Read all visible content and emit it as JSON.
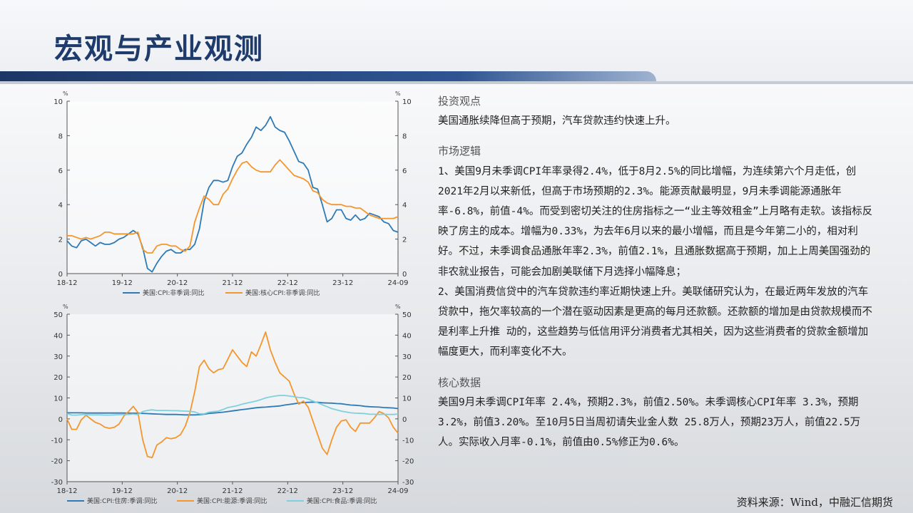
{
  "page": {
    "title": "宏观与产业观测",
    "source": "资料来源：Wind，中融汇信期货"
  },
  "sections": {
    "view_heading": "投资观点",
    "view_text": "美国通胀续降但高于预期，汽车贷款违约快速上升。",
    "logic_heading": "市场逻辑",
    "logic_p1": "1、美国9月未季调CPI年率录得2.4%，低于8月2.5%的同比增幅，为连续第六个月走低，创2021年2月以来新低，但高于市场预期的2.3%。能源贡献最明显，9月未季调能源通胀年率-6.8%，前值-4%。而受到密切关注的住房指标之一“业主等效租金”上月略有走软。该指标反映了房主的成本。增幅为0.33%，为去年6月以来的最小增幅，而且是今年第二小的，相对利好。不过，未季调食品通胀年率2.3%，前值2.1%，且通胀数据高于预期，加上上周美国强劲的非农就业报告，可能会加剧美联储下月选择小幅降息；",
    "logic_p2": "2、美国消费信贷中的汽车贷款违约率近期快速上升。美联储研究认为，在最近两年发放的汽车贷款中，拖欠率较高的一个潜在驱动因素是更高的每月还款额。还款额的增加是由贷款规模而不是利率上升推  动的，这些趋势与低信用评分消费者尤其相关，因为这些消费者的贷款金额增加幅度更大，而利率变化不大。",
    "core_heading": "核心数据",
    "core_text": "美国9月未季调CPI年率 2.4%，预期2.3%，前值2.50%。未季调核心CPI年率 3.3%，预期3.2%，前值3.20%。至10月5日当周初请失业金人数 25.8万人，预期23万人，前值22.5万人。实际收入月率-0.1%，前值由0.5%修正为0.6%。"
  },
  "chart_data": [
    {
      "type": "line",
      "unit": "%",
      "x_ticks": [
        "18-12",
        "19-12",
        "20-12",
        "21-12",
        "22-12",
        "23-12",
        "24-09"
      ],
      "ylim": [
        0,
        10
      ],
      "y_ticks": [
        0,
        2,
        4,
        6,
        8,
        10
      ],
      "legend_position": "bottom",
      "series": [
        {
          "name": "美国:CPI:非季调:同比",
          "color": "#2e7ab6",
          "values": [
            1.9,
            1.6,
            1.5,
            1.9,
            2.0,
            1.8,
            1.6,
            1.8,
            1.7,
            1.7,
            1.8,
            2.0,
            2.1,
            2.3,
            2.5,
            2.3,
            1.5,
            0.3,
            0.1,
            0.6,
            1.0,
            1.3,
            1.4,
            1.2,
            1.2,
            1.4,
            1.4,
            1.7,
            2.6,
            4.2,
            5.0,
            5.4,
            5.4,
            5.3,
            5.4,
            6.2,
            6.8,
            7.0,
            7.5,
            7.9,
            8.5,
            8.3,
            8.6,
            9.1,
            8.5,
            8.3,
            8.2,
            7.7,
            7.1,
            6.5,
            6.4,
            6.0,
            5.0,
            4.9,
            4.0,
            3.0,
            3.2,
            3.7,
            3.7,
            3.2,
            3.1,
            3.4,
            3.1,
            3.2,
            3.5,
            3.4,
            3.3,
            3.0,
            2.9,
            2.5,
            2.4
          ]
        },
        {
          "name": "美国:核心CPI:非季调:同比",
          "color": "#f5962d",
          "values": [
            2.2,
            2.2,
            2.1,
            2.0,
            2.1,
            2.0,
            2.1,
            2.2,
            2.4,
            2.4,
            2.3,
            2.3,
            2.3,
            2.3,
            2.3,
            2.4,
            1.4,
            1.2,
            1.2,
            1.6,
            1.7,
            1.7,
            1.6,
            1.6,
            1.4,
            1.3,
            1.6,
            3.0,
            3.8,
            4.5,
            4.3,
            4.0,
            4.0,
            4.6,
            4.9,
            5.5,
            6.0,
            6.4,
            6.5,
            6.2,
            6.0,
            5.9,
            5.9,
            5.9,
            6.3,
            6.6,
            6.3,
            6.0,
            5.7,
            5.6,
            5.5,
            5.3,
            4.8,
            4.7,
            4.3,
            4.1,
            4.0,
            4.0,
            4.0,
            3.9,
            3.9,
            3.8,
            3.8,
            3.6,
            3.4,
            3.3,
            3.2,
            3.2,
            3.2,
            3.2,
            3.3
          ]
        }
      ]
    },
    {
      "type": "line",
      "unit": "%",
      "x_ticks": [
        "18-12",
        "19-12",
        "20-12",
        "21-12",
        "22-12",
        "23-12",
        "24-09"
      ],
      "ylim": [
        -30,
        50
      ],
      "y_ticks": [
        -30,
        -20,
        -10,
        0,
        10,
        20,
        30,
        40,
        50
      ],
      "legend_position": "bottom",
      "series": [
        {
          "name": "美国:CPI:住房:季调:同比",
          "color": "#2e7ab6",
          "values": [
            2.9,
            2.9,
            2.9,
            2.9,
            2.8,
            2.8,
            2.8,
            2.8,
            2.8,
            2.8,
            2.8,
            2.8,
            2.8,
            2.7,
            2.7,
            2.7,
            2.6,
            2.5,
            2.4,
            2.3,
            2.2,
            2.1,
            2.1,
            2.1,
            2.0,
            1.9,
            1.9,
            1.9,
            2.0,
            2.2,
            2.6,
            2.8,
            3.0,
            3.2,
            3.5,
            3.8,
            4.1,
            4.4,
            4.7,
            5.0,
            5.3,
            5.5,
            5.6,
            5.8,
            6.0,
            6.2,
            6.6,
            6.9,
            7.2,
            7.6,
            7.8,
            7.9,
            8.0,
            7.9,
            7.7,
            7.6,
            7.5,
            7.3,
            7.2,
            6.9,
            6.6,
            6.5,
            6.3,
            6.0,
            5.8,
            5.7,
            5.6,
            5.4,
            5.3,
            5.2,
            4.9
          ]
        },
        {
          "name": "美国:CPI:能源:季调:同比",
          "color": "#f5962d",
          "values": [
            0.0,
            -5.0,
            -5.0,
            -0.5,
            1.7,
            0.0,
            -1.7,
            -2.5,
            -4.0,
            -4.5,
            -4.0,
            -2.5,
            1.3,
            3.5,
            6.0,
            3.0,
            -10.0,
            -18.0,
            -18.5,
            -12.5,
            -11.0,
            -9.0,
            -9.5,
            -9.0,
            -7.5,
            -3.5,
            3.0,
            13.0,
            25.0,
            28.0,
            24.0,
            22.0,
            23.5,
            24.0,
            28.5,
            33.0,
            30.0,
            27.0,
            25.0,
            32.0,
            30.0,
            35.5,
            41.5,
            33.0,
            27.0,
            22.0,
            20.0,
            18.0,
            12.0,
            7.0,
            8.5,
            5.5,
            -1.0,
            -7.5,
            -14.0,
            -17.0,
            -10.0,
            -4.0,
            -1.0,
            -0.5,
            -4.0,
            -6.0,
            -2.0,
            -2.0,
            -2.0,
            0.5,
            3.5,
            2.5,
            0.5,
            -4.0,
            -6.8
          ]
        },
        {
          "name": "美国:CPI:食品:季调:同比",
          "color": "#7fd0df",
          "values": [
            2.5,
            1.8,
            1.8,
            2.0,
            2.0,
            1.9,
            1.9,
            1.9,
            1.8,
            1.8,
            1.9,
            2.0,
            2.1,
            2.1,
            2.3,
            2.0,
            3.5,
            4.0,
            4.3,
            4.0,
            4.0,
            4.0,
            3.9,
            3.9,
            3.8,
            3.7,
            3.6,
            3.3,
            2.4,
            2.4,
            3.2,
            3.5,
            3.7,
            4.5,
            5.4,
            5.8,
            6.3,
            7.0,
            7.5,
            8.0,
            8.5,
            9.2,
            10.0,
            10.5,
            10.9,
            11.2,
            11.2,
            10.9,
            10.6,
            10.2,
            10.1,
            9.5,
            8.5,
            7.7,
            6.7,
            5.8,
            4.9,
            4.3,
            3.7,
            3.3,
            2.9,
            2.7,
            2.6,
            2.5,
            2.2,
            2.2,
            2.1,
            2.2,
            2.1,
            2.1,
            2.3
          ]
        }
      ]
    }
  ]
}
